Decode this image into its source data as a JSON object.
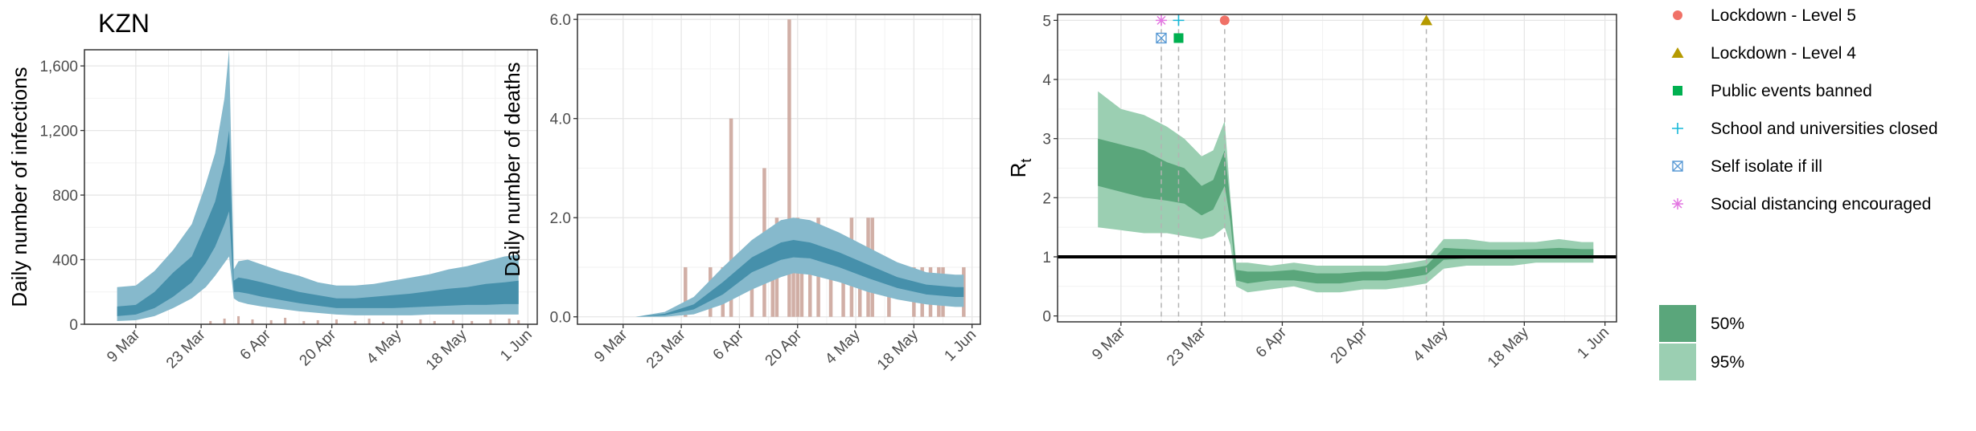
{
  "chart_data": [
    {
      "type": "area",
      "title": "KZN",
      "ylabel": "Daily number of infections",
      "xlim": [
        "2020-02-27",
        "2020-06-03"
      ],
      "ylim": [
        0,
        1700
      ],
      "xticks": [
        [
          "2020-03-09",
          "9 Mar"
        ],
        [
          "2020-03-23",
          "23 Mar"
        ],
        [
          "2020-04-06",
          "6 Apr"
        ],
        [
          "2020-04-20",
          "20 Apr"
        ],
        [
          "2020-05-04",
          "4 May"
        ],
        [
          "2020-05-18",
          "18 May"
        ],
        [
          "2020-06-01",
          "1 Jun"
        ]
      ],
      "yticks": [
        [
          0,
          "0"
        ],
        [
          400,
          "400"
        ],
        [
          800,
          "800"
        ],
        [
          1200,
          "1,200"
        ],
        [
          1600,
          "1,600"
        ]
      ],
      "colors": {
        "band95": "#86b9cc",
        "band50": "#4690ab",
        "median": "#2b7593",
        "bars": "#c9a196"
      },
      "x": [
        "2020-03-05",
        "2020-03-09",
        "2020-03-13",
        "2020-03-17",
        "2020-03-21",
        "2020-03-24",
        "2020-03-26",
        "2020-03-28",
        "2020-03-29",
        "2020-03-30",
        "2020-03-31",
        "2020-04-02",
        "2020-04-05",
        "2020-04-09",
        "2020-04-13",
        "2020-04-17",
        "2020-04-21",
        "2020-04-25",
        "2020-04-29",
        "2020-05-03",
        "2020-05-07",
        "2020-05-11",
        "2020-05-15",
        "2020-05-19",
        "2020-05-23",
        "2020-05-27",
        "2020-05-30"
      ],
      "series": [
        {
          "name": "95%",
          "lower": [
            20,
            25,
            50,
            100,
            160,
            230,
            300,
            380,
            420,
            160,
            140,
            125,
            110,
            95,
            80,
            70,
            60,
            55,
            55,
            55,
            55,
            60,
            60,
            60,
            60,
            60,
            60
          ],
          "upper": [
            230,
            240,
            330,
            460,
            620,
            870,
            1060,
            1400,
            1700,
            340,
            390,
            400,
            370,
            330,
            300,
            260,
            240,
            240,
            250,
            270,
            290,
            310,
            340,
            360,
            390,
            420,
            430
          ]
        },
        {
          "name": "50%",
          "lower": [
            50,
            60,
            100,
            170,
            260,
            380,
            480,
            620,
            700,
            200,
            200,
            190,
            170,
            150,
            130,
            115,
            100,
            100,
            100,
            100,
            105,
            110,
            115,
            120,
            120,
            125,
            125
          ],
          "upper": [
            110,
            120,
            200,
            320,
            420,
            620,
            760,
            1000,
            1200,
            270,
            290,
            280,
            260,
            230,
            200,
            180,
            160,
            160,
            170,
            180,
            190,
            205,
            220,
            230,
            250,
            260,
            270
          ]
        }
      ],
      "observed": {
        "x": [
          "2020-03-25",
          "2020-03-28",
          "2020-03-31",
          "2020-04-03",
          "2020-04-07",
          "2020-04-10",
          "2020-04-14",
          "2020-04-17",
          "2020-04-21",
          "2020-04-25",
          "2020-04-28",
          "2020-05-01",
          "2020-05-05",
          "2020-05-09",
          "2020-05-12",
          "2020-05-16",
          "2020-05-20",
          "2020-05-24",
          "2020-05-28",
          "2020-05-30"
        ],
        "values": [
          20,
          35,
          50,
          30,
          25,
          40,
          20,
          25,
          30,
          20,
          35,
          15,
          25,
          30,
          20,
          25,
          20,
          30,
          35,
          25
        ]
      }
    },
    {
      "type": "area",
      "title": "",
      "ylabel": "Daily number of deaths",
      "xlim": [
        "2020-02-27",
        "2020-06-03"
      ],
      "ylim": [
        -0.15,
        6.1
      ],
      "xticks": [
        [
          "2020-03-09",
          "9 Mar"
        ],
        [
          "2020-03-23",
          "23 Mar"
        ],
        [
          "2020-04-06",
          "6 Apr"
        ],
        [
          "2020-04-20",
          "20 Apr"
        ],
        [
          "2020-05-04",
          "4 May"
        ],
        [
          "2020-05-18",
          "18 May"
        ],
        [
          "2020-06-01",
          "1 Jun"
        ]
      ],
      "yticks": [
        [
          0,
          "0.0"
        ],
        [
          2,
          "2.0"
        ],
        [
          4,
          "4.0"
        ],
        [
          6,
          "6.0"
        ]
      ],
      "colors": {
        "band95": "#86b9cc",
        "band50": "#4690ab",
        "median": "#2b7593",
        "bars": "#c9a196"
      },
      "x": [
        "2020-03-12",
        "2020-03-19",
        "2020-03-26",
        "2020-04-02",
        "2020-04-09",
        "2020-04-16",
        "2020-04-19",
        "2020-04-23",
        "2020-04-30",
        "2020-05-07",
        "2020-05-14",
        "2020-05-21",
        "2020-05-28",
        "2020-05-30"
      ],
      "series": [
        {
          "name": "95%",
          "lower": [
            0,
            0,
            0.05,
            0.25,
            0.55,
            0.8,
            0.88,
            0.85,
            0.7,
            0.5,
            0.35,
            0.25,
            0.2,
            0.2
          ],
          "upper": [
            0,
            0.1,
            0.4,
            1.0,
            1.55,
            1.95,
            2.0,
            1.95,
            1.7,
            1.4,
            1.1,
            0.9,
            0.85,
            0.85
          ]
        },
        {
          "name": "50%",
          "lower": [
            0,
            0.03,
            0.15,
            0.45,
            0.9,
            1.15,
            1.2,
            1.18,
            1.0,
            0.78,
            0.58,
            0.45,
            0.4,
            0.4
          ],
          "upper": [
            0,
            0.06,
            0.25,
            0.7,
            1.2,
            1.5,
            1.55,
            1.5,
            1.3,
            1.05,
            0.8,
            0.65,
            0.6,
            0.6
          ]
        }
      ],
      "observed": {
        "x": [
          "2020-03-24",
          "2020-03-30",
          "2020-04-02",
          "2020-04-04",
          "2020-04-09",
          "2020-04-12",
          "2020-04-14",
          "2020-04-15",
          "2020-04-18",
          "2020-04-19",
          "2020-04-20",
          "2020-04-21",
          "2020-04-23",
          "2020-04-25",
          "2020-04-28",
          "2020-05-01",
          "2020-05-03",
          "2020-05-05",
          "2020-05-07",
          "2020-05-08",
          "2020-05-12",
          "2020-05-18",
          "2020-05-20",
          "2020-05-22",
          "2020-05-24",
          "2020-05-25",
          "2020-05-30"
        ],
        "values": [
          1,
          1,
          1,
          4,
          1,
          3,
          1,
          2,
          6,
          1,
          2,
          1,
          1,
          2,
          1,
          1,
          2,
          1,
          2,
          2,
          1,
          1,
          1,
          1,
          1,
          1,
          1
        ]
      }
    },
    {
      "type": "area",
      "title": "",
      "ylabel": "R",
      "ylabel_sub": "t",
      "xlim": [
        "2020-02-27",
        "2020-06-03"
      ],
      "ylim": [
        -0.1,
        5.1
      ],
      "xticks": [
        [
          "2020-03-09",
          "9 Mar"
        ],
        [
          "2020-03-23",
          "23 Mar"
        ],
        [
          "2020-04-06",
          "6 Apr"
        ],
        [
          "2020-04-20",
          "20 Apr"
        ],
        [
          "2020-05-04",
          "4 May"
        ],
        [
          "2020-05-18",
          "18 May"
        ],
        [
          "2020-06-01",
          "1 Jun"
        ]
      ],
      "yticks": [
        [
          0,
          "0"
        ],
        [
          1,
          "1"
        ],
        [
          2,
          "2"
        ],
        [
          3,
          "3"
        ],
        [
          4,
          "4"
        ],
        [
          5,
          "5"
        ]
      ],
      "hline": 1,
      "colors": {
        "band95": "#9bcfb2",
        "band50": "#5aa67b",
        "median": "#3c8a5c"
      },
      "x": [
        "2020-03-05",
        "2020-03-09",
        "2020-03-13",
        "2020-03-17",
        "2020-03-20",
        "2020-03-23",
        "2020-03-25",
        "2020-03-27",
        "2020-03-28",
        "2020-03-29",
        "2020-03-31",
        "2020-04-04",
        "2020-04-08",
        "2020-04-12",
        "2020-04-16",
        "2020-04-20",
        "2020-04-24",
        "2020-04-28",
        "2020-05-01",
        "2020-05-04",
        "2020-05-08",
        "2020-05-12",
        "2020-05-16",
        "2020-05-20",
        "2020-05-24",
        "2020-05-28",
        "2020-05-30"
      ],
      "series": [
        {
          "name": "95%",
          "lower": [
            1.5,
            1.45,
            1.4,
            1.4,
            1.35,
            1.3,
            1.35,
            1.5,
            1.2,
            0.5,
            0.4,
            0.45,
            0.5,
            0.4,
            0.4,
            0.45,
            0.45,
            0.5,
            0.55,
            0.8,
            0.85,
            0.85,
            0.85,
            0.9,
            0.9,
            0.9,
            0.9
          ],
          "upper": [
            3.8,
            3.5,
            3.4,
            3.2,
            3.0,
            2.7,
            2.8,
            3.3,
            2.0,
            0.9,
            0.9,
            0.85,
            0.9,
            0.85,
            0.85,
            0.85,
            0.85,
            0.9,
            0.95,
            1.3,
            1.3,
            1.25,
            1.25,
            1.25,
            1.3,
            1.25,
            1.25
          ]
        },
        {
          "name": "50%",
          "lower": [
            2.2,
            2.1,
            2.0,
            1.95,
            1.9,
            1.7,
            1.8,
            2.2,
            1.6,
            0.6,
            0.55,
            0.6,
            0.6,
            0.55,
            0.55,
            0.6,
            0.6,
            0.65,
            0.7,
            0.95,
            0.97,
            0.97,
            0.97,
            1.0,
            1.0,
            1.0,
            1.0
          ],
          "upper": [
            3.0,
            2.9,
            2.8,
            2.6,
            2.5,
            2.2,
            2.3,
            2.8,
            1.9,
            0.78,
            0.75,
            0.75,
            0.78,
            0.72,
            0.72,
            0.75,
            0.75,
            0.8,
            0.85,
            1.15,
            1.13,
            1.12,
            1.12,
            1.13,
            1.15,
            1.13,
            1.13
          ]
        }
      ],
      "interventions": [
        {
          "date": "2020-03-16",
          "label": "Social distancing encouraged",
          "marker": "asterisk",
          "color": "#e377e2",
          "y": 5.0
        },
        {
          "date": "2020-03-16",
          "label": "Self isolate if ill",
          "marker": "boxx",
          "color": "#5b9bd5",
          "y": 4.7
        },
        {
          "date": "2020-03-19",
          "label": "School and universities closed",
          "marker": "plus",
          "color": "#17b8d8",
          "y": 5.0
        },
        {
          "date": "2020-03-19",
          "label": "Public events banned",
          "marker": "square",
          "color": "#00b050",
          "y": 4.7
        },
        {
          "date": "2020-03-27",
          "label": "Lockdown - Level 5",
          "marker": "circle",
          "color": "#f07167",
          "y": 5.0
        },
        {
          "date": "2020-05-01",
          "label": "Lockdown - Level 4",
          "marker": "triangle",
          "color": "#b59a00",
          "y": 5.0
        }
      ]
    }
  ],
  "legend": {
    "interventions": [
      "Lockdown - Level 5",
      "Lockdown - Level 4",
      "Public events banned",
      "School and universities closed",
      "Self isolate if ill",
      "Social distancing encouraged"
    ],
    "bands": [
      {
        "label": "50%",
        "color": "#5aa67b"
      },
      {
        "label": "95%",
        "color": "#9bcfb2"
      }
    ]
  }
}
